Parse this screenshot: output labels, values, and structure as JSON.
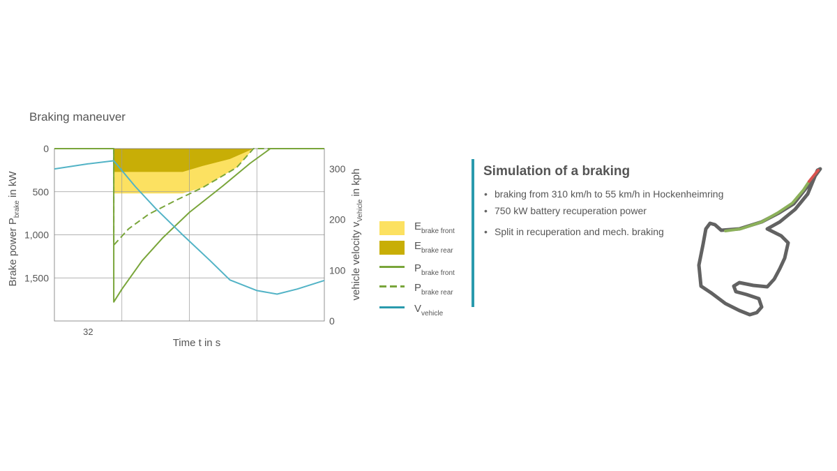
{
  "heading": "Braking maneuver",
  "chart_data": {
    "type": "line",
    "xlabel": "Time t in s",
    "x_ticks": [
      "32"
    ],
    "y_left": {
      "label_main": "Brake power P",
      "label_sub": "brake",
      "label_unit": " in kW",
      "ticks": [
        "0",
        "500",
        "1,000",
        "1,500"
      ],
      "tick_values": [
        0,
        500,
        1000,
        1500
      ],
      "range": [
        0,
        2000
      ],
      "inverted": true
    },
    "y_right": {
      "label_main": "vehicle velocity v",
      "label_sub": "Vehicle",
      "label_unit": " in kph",
      "ticks": [
        "300",
        "200",
        "100",
        "0"
      ],
      "tick_values": [
        300,
        200,
        100,
        0
      ],
      "range": [
        0,
        340
      ]
    },
    "x_range": [
      31,
      35
    ],
    "series": [
      {
        "name": "P brake front",
        "axis": "left",
        "style": "solid",
        "color": "#79a53a",
        "points": [
          [
            31,
            0
          ],
          [
            31.88,
            0
          ],
          [
            31.88,
            1780
          ],
          [
            32,
            1630
          ],
          [
            32.3,
            1300
          ],
          [
            32.6,
            1040
          ],
          [
            33,
            740
          ],
          [
            33.5,
            430
          ],
          [
            33.9,
            170
          ],
          [
            34.2,
            0
          ],
          [
            35,
            0
          ]
        ]
      },
      {
        "name": "P brake rear",
        "axis": "left",
        "style": "dashed",
        "color": "#79a53a",
        "points": [
          [
            31,
            0
          ],
          [
            31.88,
            0
          ],
          [
            31.88,
            1120
          ],
          [
            32.1,
            930
          ],
          [
            32.4,
            760
          ],
          [
            32.8,
            600
          ],
          [
            33.2,
            450
          ],
          [
            33.7,
            220
          ],
          [
            33.95,
            0
          ],
          [
            34.4,
            0
          ]
        ]
      },
      {
        "name": "V vehicle",
        "axis": "right",
        "style": "solid",
        "color": "#52b3c6",
        "points": [
          [
            31,
            300
          ],
          [
            31.5,
            310
          ],
          [
            31.88,
            316
          ],
          [
            32.2,
            265
          ],
          [
            32.5,
            222
          ],
          [
            32.9,
            170
          ],
          [
            33.3,
            120
          ],
          [
            33.6,
            81
          ],
          [
            34,
            60
          ],
          [
            34.3,
            53
          ],
          [
            34.6,
            63
          ],
          [
            35,
            80
          ]
        ]
      }
    ],
    "areas": [
      {
        "name": "E brake front",
        "color": "#fce161",
        "x_from": 31.88,
        "x_to": 33.95
      },
      {
        "name": "E brake rear",
        "color": "#c8ae06",
        "x_from": 31.88,
        "x_to": 33.95
      }
    ]
  },
  "legend": [
    {
      "main": "E",
      "sub": "brake front",
      "kind": "box",
      "color": "#fce161"
    },
    {
      "main": "E",
      "sub": "brake rear",
      "kind": "box",
      "color": "#c8ae06"
    },
    {
      "main": "P",
      "sub": "brake front",
      "kind": "solid",
      "color": "#79a53a"
    },
    {
      "main": "P",
      "sub": "brake rear",
      "kind": "dashed",
      "color": "#79a53a"
    },
    {
      "main": "V",
      "sub": "vehicle",
      "kind": "solid",
      "color": "#2a9aad"
    }
  ],
  "info": {
    "title": "Simulation of a braking",
    "bullets": [
      "braking from 310 km/h to 55 km/h in Hockenheimring",
      "750 kW battery recuperation power",
      "Split in recuperation and mech. braking"
    ]
  },
  "colors": {
    "accent": "#2a9aad",
    "track": "#626262",
    "track_highlight": "#8cb15a",
    "track_end": "#d9534f"
  }
}
